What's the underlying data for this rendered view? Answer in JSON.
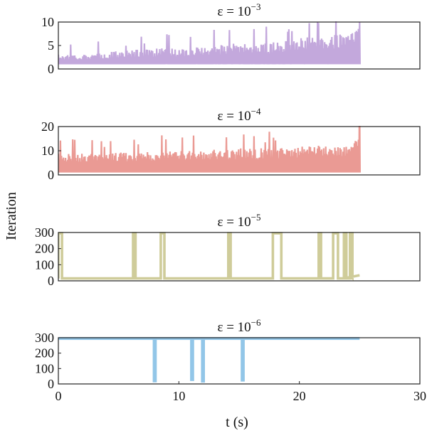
{
  "chart_data": {
    "type": "line",
    "layout": "4 vertically stacked panels, shared x axis",
    "xlabel": "t (s)",
    "ylabel": "Iteration",
    "xlim": [
      0,
      30
    ],
    "x_ticks": [
      0,
      10,
      20,
      30
    ],
    "grid": false,
    "panels": [
      {
        "title_base": "ε = 10",
        "title_exp": "−3",
        "ylim": [
          0,
          10
        ],
        "y_ticks": [
          0,
          5,
          10
        ],
        "color": "#c3a8dc",
        "style": "dense-oscillation",
        "t_end": 25,
        "baseline": 1,
        "envelope": {
          "x": [
            0,
            2.5,
            5,
            7.5,
            10,
            12.5,
            15,
            17.5,
            20,
            22.5,
            24.5,
            25
          ],
          "y": [
            3,
            3,
            3.5,
            4,
            4,
            4.5,
            5,
            5,
            6,
            6.5,
            7,
            10
          ]
        }
      },
      {
        "title_base": "ε = 10",
        "title_exp": "−4",
        "ylim": [
          0,
          20
        ],
        "y_ticks": [
          0,
          10,
          20
        ],
        "color": "#ea9a94",
        "style": "dense-oscillation",
        "t_end": 25,
        "baseline": 1,
        "envelope": {
          "x": [
            0,
            2.5,
            5,
            7.5,
            10,
            12.5,
            15,
            17.5,
            20,
            22.5,
            24.5,
            25
          ],
          "y": [
            8,
            8,
            8.5,
            9,
            9,
            9.5,
            10,
            10,
            11,
            11.5,
            12,
            19
          ]
        }
      },
      {
        "title_base": "ε = 10",
        "title_exp": "−5",
        "ylim": [
          0,
          300
        ],
        "y_ticks": [
          0,
          100,
          200,
          300
        ],
        "color": "#cfcc9a",
        "style": "spike-pulses",
        "baseline": 15,
        "t_end": 25,
        "end_value": 35,
        "high": 295,
        "pulses": [
          [
            0,
            0.3
          ],
          [
            6.2,
            6.4
          ],
          [
            8.5,
            8.8
          ],
          [
            14.1,
            14.3
          ],
          [
            17.8,
            18.5
          ],
          [
            21.6,
            21.8
          ],
          [
            22.8,
            23.2
          ],
          [
            23.7,
            23.9
          ],
          [
            24.2,
            24.4
          ]
        ]
      },
      {
        "title_base": "ε = 10",
        "title_exp": "−6",
        "ylim": [
          0,
          300
        ],
        "y_ticks": [
          0,
          100,
          200,
          300
        ],
        "color": "#92c6e8",
        "style": "dip-pulses",
        "baseline": 295,
        "t_end": 25,
        "dips": [
          {
            "t": 8.0,
            "low": 20
          },
          {
            "t": 11.1,
            "low": 28
          },
          {
            "t": 12.0,
            "low": 18
          },
          {
            "t": 15.3,
            "low": 25
          }
        ]
      }
    ]
  }
}
